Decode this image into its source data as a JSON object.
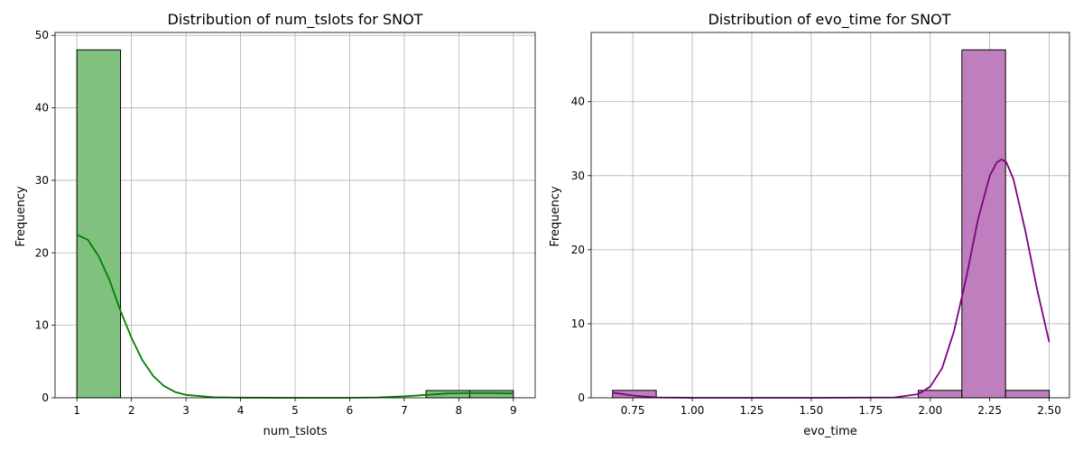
{
  "chart_data": [
    {
      "type": "bar",
      "title": "Distribution of num_tslots for SNOT",
      "xlabel": "num_tslots",
      "ylabel": "Frequency",
      "xlim": [
        0.6,
        9.4
      ],
      "ylim": [
        0,
        50.4
      ],
      "xticks": [
        1,
        2,
        3,
        4,
        5,
        6,
        7,
        8,
        9
      ],
      "xtick_labels": [
        "1",
        "2",
        "3",
        "4",
        "5",
        "6",
        "7",
        "8",
        "9"
      ],
      "yticks": [
        0,
        10,
        20,
        30,
        40,
        50
      ],
      "ytick_labels": [
        "0",
        "10",
        "20",
        "30",
        "40",
        "50"
      ],
      "grid": true,
      "bar_color": "#81c17f",
      "kde_color": "#008000",
      "bins": [
        {
          "x0": 1.0,
          "x1": 1.8,
          "count": 48
        },
        {
          "x0": 7.4,
          "x1": 8.2,
          "count": 1
        },
        {
          "x0": 8.2,
          "x1": 9.0,
          "count": 1
        }
      ],
      "kde": {
        "x": [
          1.0,
          1.2,
          1.4,
          1.6,
          1.8,
          2.0,
          2.2,
          2.4,
          2.6,
          2.8,
          3.0,
          3.5,
          4.0,
          5.0,
          6.0,
          6.5,
          7.0,
          7.4,
          7.8,
          8.2,
          8.6,
          9.0
        ],
        "y": [
          22.5,
          21.8,
          19.5,
          16.2,
          12.0,
          8.3,
          5.2,
          3.0,
          1.6,
          0.8,
          0.4,
          0.08,
          0.02,
          0.0,
          0.0,
          0.05,
          0.2,
          0.4,
          0.6,
          0.65,
          0.65,
          0.6
        ]
      }
    },
    {
      "type": "bar",
      "title": "Distribution of evo_time for SNOT",
      "xlabel": "evo_time",
      "ylabel": "Frequency",
      "xlim": [
        0.575,
        2.585
      ],
      "ylim": [
        0,
        49.35
      ],
      "xticks": [
        0.75,
        1.0,
        1.25,
        1.5,
        1.75,
        2.0,
        2.25,
        2.5
      ],
      "xtick_labels": [
        "0.75",
        "1.00",
        "1.25",
        "1.50",
        "1.75",
        "2.00",
        "2.25",
        "2.50"
      ],
      "yticks": [
        0,
        10,
        20,
        30,
        40
      ],
      "ytick_labels": [
        "0",
        "10",
        "20",
        "30",
        "40"
      ],
      "grid": true,
      "bar_color": "#bf7fbf",
      "kde_color": "#800080",
      "bins": [
        {
          "x0": 0.665,
          "x1": 0.8485,
          "count": 1
        },
        {
          "x0": 1.9495,
          "x1": 2.133,
          "count": 1
        },
        {
          "x0": 2.133,
          "x1": 2.3165,
          "count": 47
        },
        {
          "x0": 2.3165,
          "x1": 2.5,
          "count": 1
        }
      ],
      "kde": {
        "x": [
          0.665,
          0.75,
          0.85,
          1.0,
          1.5,
          1.85,
          1.95,
          2.0,
          2.05,
          2.1,
          2.15,
          2.2,
          2.25,
          2.28,
          2.3,
          2.32,
          2.35,
          2.4,
          2.45,
          2.5
        ],
        "y": [
          0.7,
          0.3,
          0.05,
          0.0,
          0.0,
          0.05,
          0.5,
          1.5,
          4.0,
          9.0,
          16.0,
          24.0,
          30.0,
          31.8,
          32.2,
          31.8,
          29.5,
          22.5,
          14.5,
          7.5
        ]
      }
    }
  ]
}
